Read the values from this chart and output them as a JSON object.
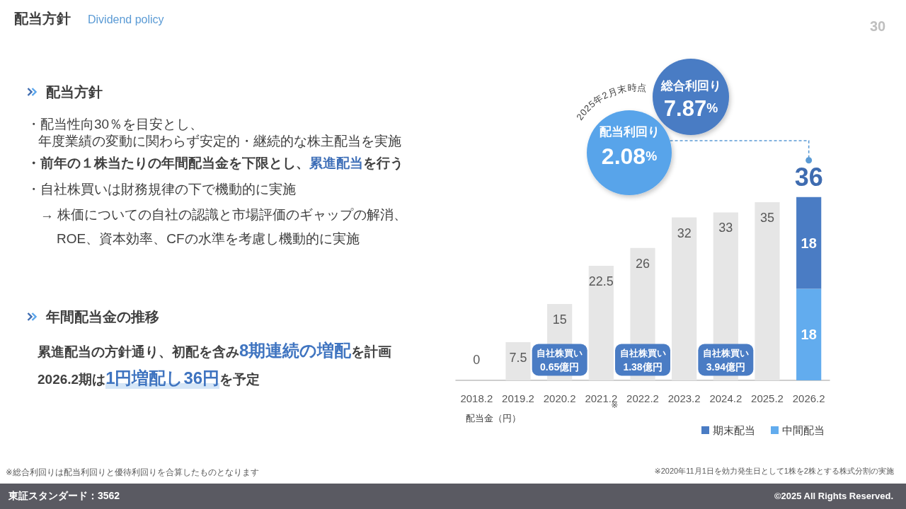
{
  "chart_data": {
    "type": "bar",
    "title": "配当方針",
    "subtitle": "Dividend policy",
    "categories": [
      "2018.2",
      "2019.2",
      "2020.2",
      "2021.2",
      "2022.2",
      "2023.2",
      "2024.2",
      "2025.2",
      "2026.2"
    ],
    "series": [
      {
        "color": "#e6e6e6",
        "values": [
          0,
          7.5,
          15,
          22.5,
          26,
          32,
          33,
          35,
          null
        ]
      },
      {
        "name": "中間配当",
        "color": "#62acee",
        "values": [
          null,
          null,
          null,
          null,
          null,
          null,
          null,
          null,
          18
        ]
      },
      {
        "name": "期末配当",
        "color": "#4a7cc4",
        "values": [
          null,
          null,
          null,
          null,
          null,
          null,
          null,
          null,
          18
        ]
      }
    ],
    "stacked": true,
    "data_labels": true,
    "totals": [
      null,
      null,
      null,
      null,
      null,
      null,
      null,
      null,
      "36"
    ],
    "tick_labels": "x",
    "legend": "bottom right",
    "annotations": [
      "30",
      "配当方針",
      "・配当性向30％を目安とし、",
      "年度業績の変動に関わらず安定的・継続的な株主配当を実施",
      "・前年の１株当たりの年間配当金を下限とし、",
      "累進配当",
      "を行う",
      "・自社株買いは財務規律の下で機動的に実施",
      "→ 株価についての自社の認識と市場評価のギャップの解消、",
      "ROE、資本効率、CFの水準を考慮し機動的に実施",
      "年間配当金の推移",
      "累進配当の方針通り、初配を含み",
      "8期連続の増配",
      "を計画",
      "2026.2期は",
      "1円増配し36円",
      "を予定",
      "2025年2月末時点",
      "総合利回り",
      "7.87%",
      "配当利回り",
      "2.08%",
      "自社株買い\n0.65億円",
      "自社株買い\n1.38億円",
      "自社株買い\n3.94億円",
      "※",
      "配当金（円）",
      "※総合利回りは配当利回りと優待利回りを合算したものとなります",
      "※2020年11月1日を効力発生日として1株を2株とする株式分割の実施",
      "東証スタンダード：3562",
      "©2025 All Rights Reserved."
    ]
  }
}
